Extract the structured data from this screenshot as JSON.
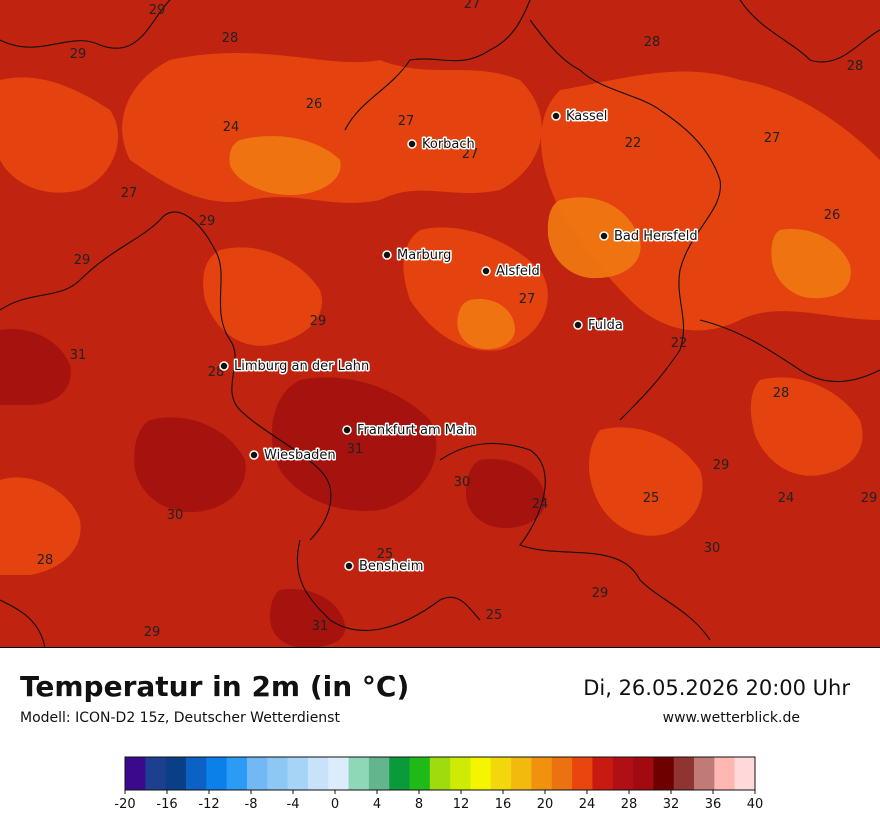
{
  "title": "Temperatur in 2m (in °C)",
  "subtitle": "Modell: ICON-D2 15z, Deutscher Wetterdienst",
  "datetime": "Di, 26.05.2026 20:00 Uhr",
  "website": "www.wetterblick.de",
  "cities": [
    {
      "name": "Kassel",
      "label": "Kassel"
    },
    {
      "name": "Korbach",
      "label": "Korbach"
    },
    {
      "name": "Bad Hersfeld",
      "label": "Bad Hersfeld"
    },
    {
      "name": "Marburg",
      "label": "Marburg"
    },
    {
      "name": "Alsfeld",
      "label": "Alsfeld"
    },
    {
      "name": "Fulda",
      "label": "Fulda"
    },
    {
      "name": "Limburg an der Lahn",
      "label": "Limburg an der Lahn"
    },
    {
      "name": "Frankfurt am Main",
      "label": "Frankfurt am Main"
    },
    {
      "name": "Wiesbaden",
      "label": "Wiesbaden"
    },
    {
      "name": "Bensheim",
      "label": "Bensheim"
    }
  ],
  "grid_values": [
    "29",
    "27",
    "28",
    "28",
    "28",
    "29",
    "26",
    "24",
    "27",
    "27",
    "22",
    "27",
    "27",
    "29",
    "26",
    "29",
    "27",
    "27",
    "22",
    "29",
    "28",
    "31",
    "28",
    "31",
    "30",
    "29",
    "30",
    "24",
    "25",
    "24",
    "29",
    "28",
    "25",
    "30",
    "29",
    "29",
    "25",
    "31"
  ],
  "legend": {
    "ticks": [
      "-20",
      "-16",
      "-12",
      "-8",
      "-4",
      "0",
      "4",
      "8",
      "12",
      "16",
      "20",
      "24",
      "28",
      "32",
      "36",
      "40"
    ],
    "colors": [
      "#3b0a8c",
      "#1c3f8f",
      "#0c3e88",
      "#0b62c4",
      "#0a80e8",
      "#2b9bf5",
      "#71b8f5",
      "#8dc8f5",
      "#a6d4f7",
      "#c8e2f9",
      "#dcecfb",
      "#8ed8b8",
      "#63b58e",
      "#0a9a3c",
      "#1fba1a",
      "#9edc0e",
      "#cdeb05",
      "#f4f500",
      "#f2d70c",
      "#f2b90e",
      "#f09210",
      "#ec7110",
      "#e8460e",
      "#c91a12",
      "#b01015",
      "#a00a10",
      "#6e0000",
      "#8f3430",
      "#c07b77",
      "#ffb7b2",
      "#ffd9d9"
    ]
  },
  "map_colors": {
    "base": "#c0230f",
    "warm": "#e8470f",
    "hot": "#a3120e",
    "cooler": "#f07a12"
  }
}
